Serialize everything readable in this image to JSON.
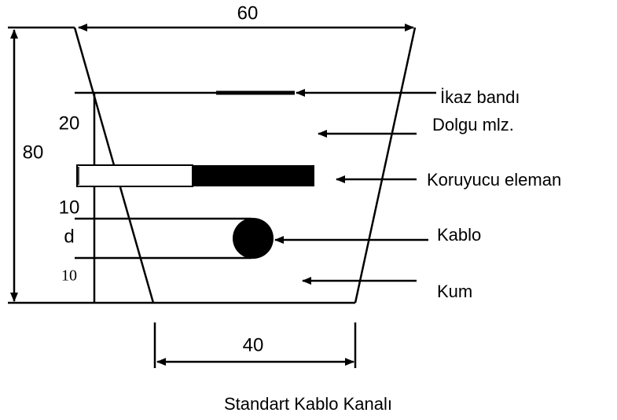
{
  "dimensions": {
    "top_width": "60",
    "height": "80",
    "fill_depth": "20",
    "cable_gap": "10",
    "cable": "d",
    "sand": "10",
    "bottom_width": "40"
  },
  "labels": {
    "warning_tape": "İkaz bandı",
    "fill": "Dolgu mlz.",
    "protector": "Koruyucu eleman",
    "cable": "Kablo",
    "sand": "Kum"
  },
  "caption": "Standart Kablo Kanalı"
}
